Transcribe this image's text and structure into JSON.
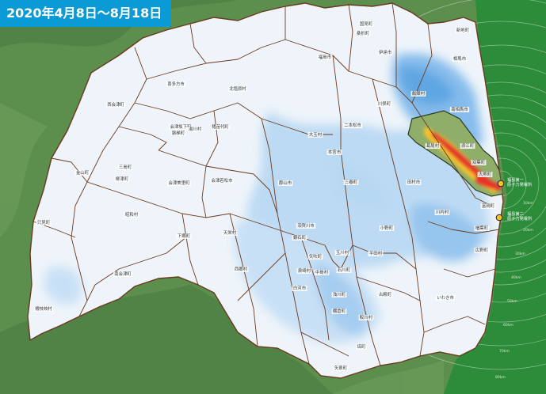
{
  "title": "2020年4月8日〜8月18日",
  "colors": {
    "terrain": "#5c8f4e",
    "sea": "#2c8c3a",
    "prefecture_fill": "#eef4fa",
    "border": "#6b3a1e",
    "dose_light": "#9ec9ef",
    "dose_mid": "#5aa7e6",
    "highlight_area": "#8fae6a",
    "dose_hot": "#e5342b",
    "dose_warm": "#f5c12f"
  },
  "municipalities": [
    {
      "id": "m1",
      "name": "国見町"
    },
    {
      "id": "m2",
      "name": "桑折町"
    },
    {
      "id": "m3",
      "name": "新地町"
    },
    {
      "id": "m4",
      "name": "伊達市"
    },
    {
      "id": "m5",
      "name": "福島市"
    },
    {
      "id": "m6",
      "name": "相馬市"
    },
    {
      "id": "m7",
      "name": "喜多方市"
    },
    {
      "id": "m8",
      "name": "北塩原村"
    },
    {
      "id": "m9",
      "name": "飯舘村"
    },
    {
      "id": "m10",
      "name": "西会津町"
    },
    {
      "id": "m11",
      "name": "川俣町"
    },
    {
      "id": "m12",
      "name": "南相馬市"
    },
    {
      "id": "m13",
      "name": "会津坂下町"
    },
    {
      "id": "m14",
      "name": "湯川村"
    },
    {
      "id": "m15",
      "name": "磐梯町"
    },
    {
      "id": "m16",
      "name": "猪苗代町"
    },
    {
      "id": "m17",
      "name": "二本松市"
    },
    {
      "id": "m18",
      "name": "大玉村"
    },
    {
      "id": "m19",
      "name": "葛尾村"
    },
    {
      "id": "m20",
      "name": "浪江町"
    },
    {
      "id": "m21",
      "name": "本宮市"
    },
    {
      "id": "m22",
      "name": "双葉町"
    },
    {
      "id": "m23",
      "name": "金山町"
    },
    {
      "id": "m24",
      "name": "三島町"
    },
    {
      "id": "m25",
      "name": "柳津町"
    },
    {
      "id": "m26",
      "name": "会津美里町"
    },
    {
      "id": "m27",
      "name": "会津若松市"
    },
    {
      "id": "m28",
      "name": "郡山市"
    },
    {
      "id": "m29",
      "name": "三春町"
    },
    {
      "id": "m30",
      "name": "田村市"
    },
    {
      "id": "m31",
      "name": "大熊町"
    },
    {
      "id": "m32",
      "name": "富岡町"
    },
    {
      "id": "m33",
      "name": "川内村"
    },
    {
      "id": "m34",
      "name": "昭和村"
    },
    {
      "id": "m35",
      "name": "只見町"
    },
    {
      "id": "m36",
      "name": "下郷町"
    },
    {
      "id": "m37",
      "name": "天栄村"
    },
    {
      "id": "m38",
      "name": "須賀川市"
    },
    {
      "id": "m39",
      "name": "鏡石町"
    },
    {
      "id": "m40",
      "name": "玉川村"
    },
    {
      "id": "m41",
      "name": "小野町"
    },
    {
      "id": "m42",
      "name": "平田村"
    },
    {
      "id": "m43",
      "name": "楢葉町"
    },
    {
      "id": "m44",
      "name": "広野町"
    },
    {
      "id": "m45",
      "name": "西郷村"
    },
    {
      "id": "m46",
      "name": "矢吹町"
    },
    {
      "id": "m47",
      "name": "泉崎村"
    },
    {
      "id": "m48",
      "name": "中島村"
    },
    {
      "id": "m49",
      "name": "石川町"
    },
    {
      "id": "m50",
      "name": "南会津町"
    },
    {
      "id": "m51",
      "name": "白河市"
    },
    {
      "id": "m52",
      "name": "浅川町"
    },
    {
      "id": "m53",
      "name": "古殿町"
    },
    {
      "id": "m54",
      "name": "いわき市"
    },
    {
      "id": "m55",
      "name": "檜枝岐村"
    },
    {
      "id": "m56",
      "name": "棚倉町"
    },
    {
      "id": "m57",
      "name": "鮫川村"
    },
    {
      "id": "m58",
      "name": "塙町"
    },
    {
      "id": "m59",
      "name": "矢祭町"
    }
  ],
  "plants": [
    {
      "id": "p1",
      "line1": "福島第一",
      "line2": "原子力発電所"
    },
    {
      "id": "p2",
      "line1": "福島第二",
      "line2": "原子力発電所"
    }
  ],
  "distance_rings": [
    "10km",
    "20km",
    "30km",
    "40km",
    "50km",
    "60km",
    "70km",
    "80km"
  ]
}
